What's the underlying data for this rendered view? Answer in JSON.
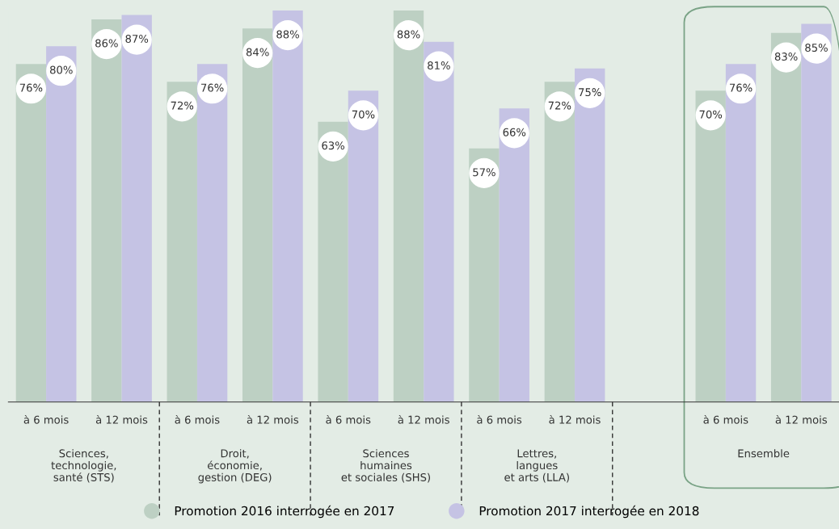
{
  "chart_data": {
    "type": "bar",
    "categories": [
      "à 6 mois",
      "à 12 mois",
      "à 6 mois",
      "à 12 mois",
      "à 6 mois",
      "à 12 mois",
      "à 6 mois",
      "à 12 mois",
      null,
      "à 6 mois",
      "à 12 mois"
    ],
    "series": [
      {
        "name": "Promotion 2016 interrogée en 2017",
        "color": "#bdd0c3",
        "values": [
          76,
          86,
          72,
          84,
          63,
          88,
          57,
          72,
          null,
          70,
          83
        ],
        "value_labels": [
          "76%",
          "86%",
          "72%",
          "84%",
          "63%",
          "88%",
          "57%",
          "72%",
          null,
          "70%",
          "83%"
        ]
      },
      {
        "name": "Promotion 2017 interrogée en 2018",
        "color": "#c5c3e4",
        "values": [
          80,
          87,
          76,
          88,
          70,
          81,
          66,
          75,
          null,
          76,
          85
        ],
        "value_labels": [
          "80%",
          "87%",
          "76%",
          "88%",
          "70%",
          "81%",
          "66%",
          "75%",
          null,
          "76%",
          "85%"
        ]
      }
    ],
    "annotations": [
      "Sciences,\ntechnologie,\nsanté (STS)",
      "Droit,\néconomie,\ngestion (DEG)",
      "Sciences\nhumaines\net sociales (SHS)",
      "Lettres,\nlangues\net arts (LLA)",
      "Ensemble"
    ],
    "legend": "bottom",
    "grid": false
  }
}
